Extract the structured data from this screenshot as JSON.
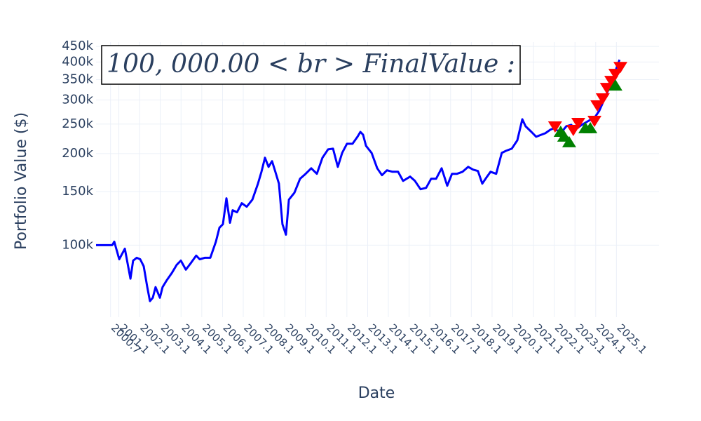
{
  "chart_data": {
    "type": "line",
    "annotation": "100, 000.00 < br > FinalValue :",
    "xlabel": "Date",
    "ylabel": "Portfolio Value ($)",
    "log_y": true,
    "grid": true,
    "xlim": [
      2000,
      2027.15
    ],
    "xticks": [
      2000.7,
      2001.1,
      2002.1,
      2003.1,
      2004.1,
      2005.1,
      2006.1,
      2007.1,
      2008.1,
      2009.1,
      2010.1,
      2011.1,
      2012.1,
      2013.1,
      2014.1,
      2015.1,
      2016.1,
      2017.1,
      2018.1,
      2019.1,
      2020.1,
      2021.1,
      2022.1,
      2023.1,
      2024.1,
      2025.1
    ],
    "ylim": [
      58000,
      465000
    ],
    "yticks": [
      {
        "value": 100000,
        "label": "100k"
      },
      {
        "value": 150000,
        "label": "150k"
      },
      {
        "value": 200000,
        "label": "200k"
      },
      {
        "value": 250000,
        "label": "250k"
      },
      {
        "value": 300000,
        "label": "300k"
      },
      {
        "value": 350000,
        "label": "350k"
      },
      {
        "value": 400000,
        "label": "400k"
      },
      {
        "value": 450000,
        "label": "450k"
      }
    ],
    "series": [
      {
        "color": "#0000ff",
        "marker": "line",
        "x": [
          2000.0,
          2000.78,
          2000.88,
          2001.12,
          2001.39,
          2001.66,
          2001.79,
          2001.96,
          2002.13,
          2002.3,
          2002.47,
          2002.6,
          2002.74,
          2002.87,
          2003.08,
          2003.21,
          2003.41,
          2003.65,
          2003.89,
          2004.09,
          2004.33,
          2004.56,
          2004.83,
          2005.0,
          2005.24,
          2005.51,
          2005.78,
          2005.95,
          2006.12,
          2006.29,
          2006.46,
          2006.59,
          2006.8,
          2007.03,
          2007.27,
          2007.54,
          2007.81,
          2007.98,
          2008.15,
          2008.32,
          2008.49,
          2008.65,
          2008.82,
          2008.99,
          2009.16,
          2009.3,
          2009.57,
          2009.84,
          2010.11,
          2010.38,
          2010.65,
          2010.92,
          2011.19,
          2011.43,
          2011.66,
          2011.87,
          2012.1,
          2012.37,
          2012.61,
          2012.75,
          2012.88,
          2013.02,
          2013.29,
          2013.56,
          2013.79,
          2014.03,
          2014.3,
          2014.57,
          2014.81,
          2015.15,
          2015.38,
          2015.65,
          2015.92,
          2016.16,
          2016.4,
          2016.67,
          2016.94,
          2017.17,
          2017.41,
          2017.68,
          2017.95,
          2018.19,
          2018.42,
          2018.63,
          2018.86,
          2019.03,
          2019.3,
          2019.57,
          2019.78,
          2020.05,
          2020.32,
          2020.56,
          2020.72,
          2021.0,
          2021.23,
          2021.4,
          2021.67,
          2021.91,
          2022.08,
          2022.25,
          2022.41,
          2022.68,
          2022.92,
          2023.09,
          2023.43,
          2023.77,
          2024.04,
          2024.27,
          2024.51,
          2024.71,
          2024.85,
          2024.98,
          2025.12,
          2025.25
        ],
        "values": [
          100000,
          100000,
          102700,
          89900,
          97400,
          77600,
          89000,
          90900,
          89900,
          85300,
          72800,
          65500,
          67200,
          72800,
          67200,
          72800,
          76700,
          80900,
          86200,
          89000,
          83100,
          87100,
          92400,
          89900,
          90900,
          90900,
          102700,
          114100,
          117200,
          142600,
          118500,
          130300,
          128300,
          137400,
          133800,
          141100,
          159300,
          174300,
          193800,
          180900,
          188800,
          174300,
          159300,
          117200,
          108300,
          141100,
          148700,
          165300,
          171600,
          179000,
          171600,
          193800,
          206500,
          207600,
          180900,
          201100,
          215400,
          215400,
          227200,
          235700,
          230800,
          212100,
          201100,
          179000,
          169800,
          176200,
          174300,
          174300,
          162700,
          168000,
          162700,
          152700,
          154300,
          165300,
          165300,
          179000,
          156800,
          171600,
          171600,
          174300,
          180900,
          177100,
          175300,
          159300,
          168000,
          174300,
          171600,
          201100,
          204300,
          207600,
          221200,
          259300,
          245900,
          235700,
          227200,
          229600,
          233300,
          239500,
          242100,
          238200,
          233300,
          245900,
          248600,
          239500,
          248600,
          256600,
          262000,
          276300,
          300800,
          323800,
          337900,
          360100,
          385700,
          406700
        ]
      },
      {
        "color": "#ff0000",
        "marker": "triangle-down",
        "x": [
          2022.14,
          2023.02,
          2023.26,
          2024.04,
          2024.18,
          2024.44,
          2024.64,
          2024.85,
          2025.05,
          2025.29
        ],
        "values": [
          245900,
          239500,
          252500,
          256600,
          288300,
          304000,
          329000,
          346900,
          365800,
          385700
        ]
      },
      {
        "color": "#008000",
        "marker": "triangle-up",
        "x": [
          2022.41,
          2022.58,
          2022.82,
          2023.6,
          2023.84,
          2025.05
        ],
        "values": [
          235700,
          227200,
          217800,
          242100,
          242100,
          334300
        ]
      }
    ]
  }
}
